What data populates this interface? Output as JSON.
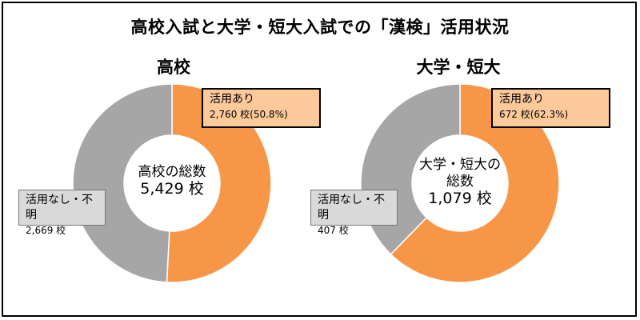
{
  "chart_data": {
    "type": "pie",
    "title": "高校入試と大学・短大入試での「漢検」活用状況",
    "charts": [
      {
        "subtitle": "高校",
        "center_line1": "高校の総数",
        "center_line2": "",
        "center_total": "5,429 校",
        "total": 5429,
        "slices": [
          {
            "label": "活用あり",
            "value": 2760,
            "value_text": "2,760 校(50.8%)",
            "percent": 50.8,
            "color": "#F79646"
          },
          {
            "label": "活用なし・不明",
            "value": 2669,
            "value_text": "2,669 校",
            "color": "#A6A6A6"
          }
        ]
      },
      {
        "subtitle": "大学・短大",
        "center_line1": "大学・短大の",
        "center_line2": "総数",
        "center_total": "1,079 校",
        "total": 1079,
        "slices": [
          {
            "label": "活用あり",
            "value": 672,
            "value_text": "672 校(62.3%)",
            "percent": 62.3,
            "color": "#F79646"
          },
          {
            "label": "活用なし・不明",
            "value": 407,
            "value_text": "407 校",
            "color": "#A6A6A6"
          }
        ]
      }
    ]
  }
}
